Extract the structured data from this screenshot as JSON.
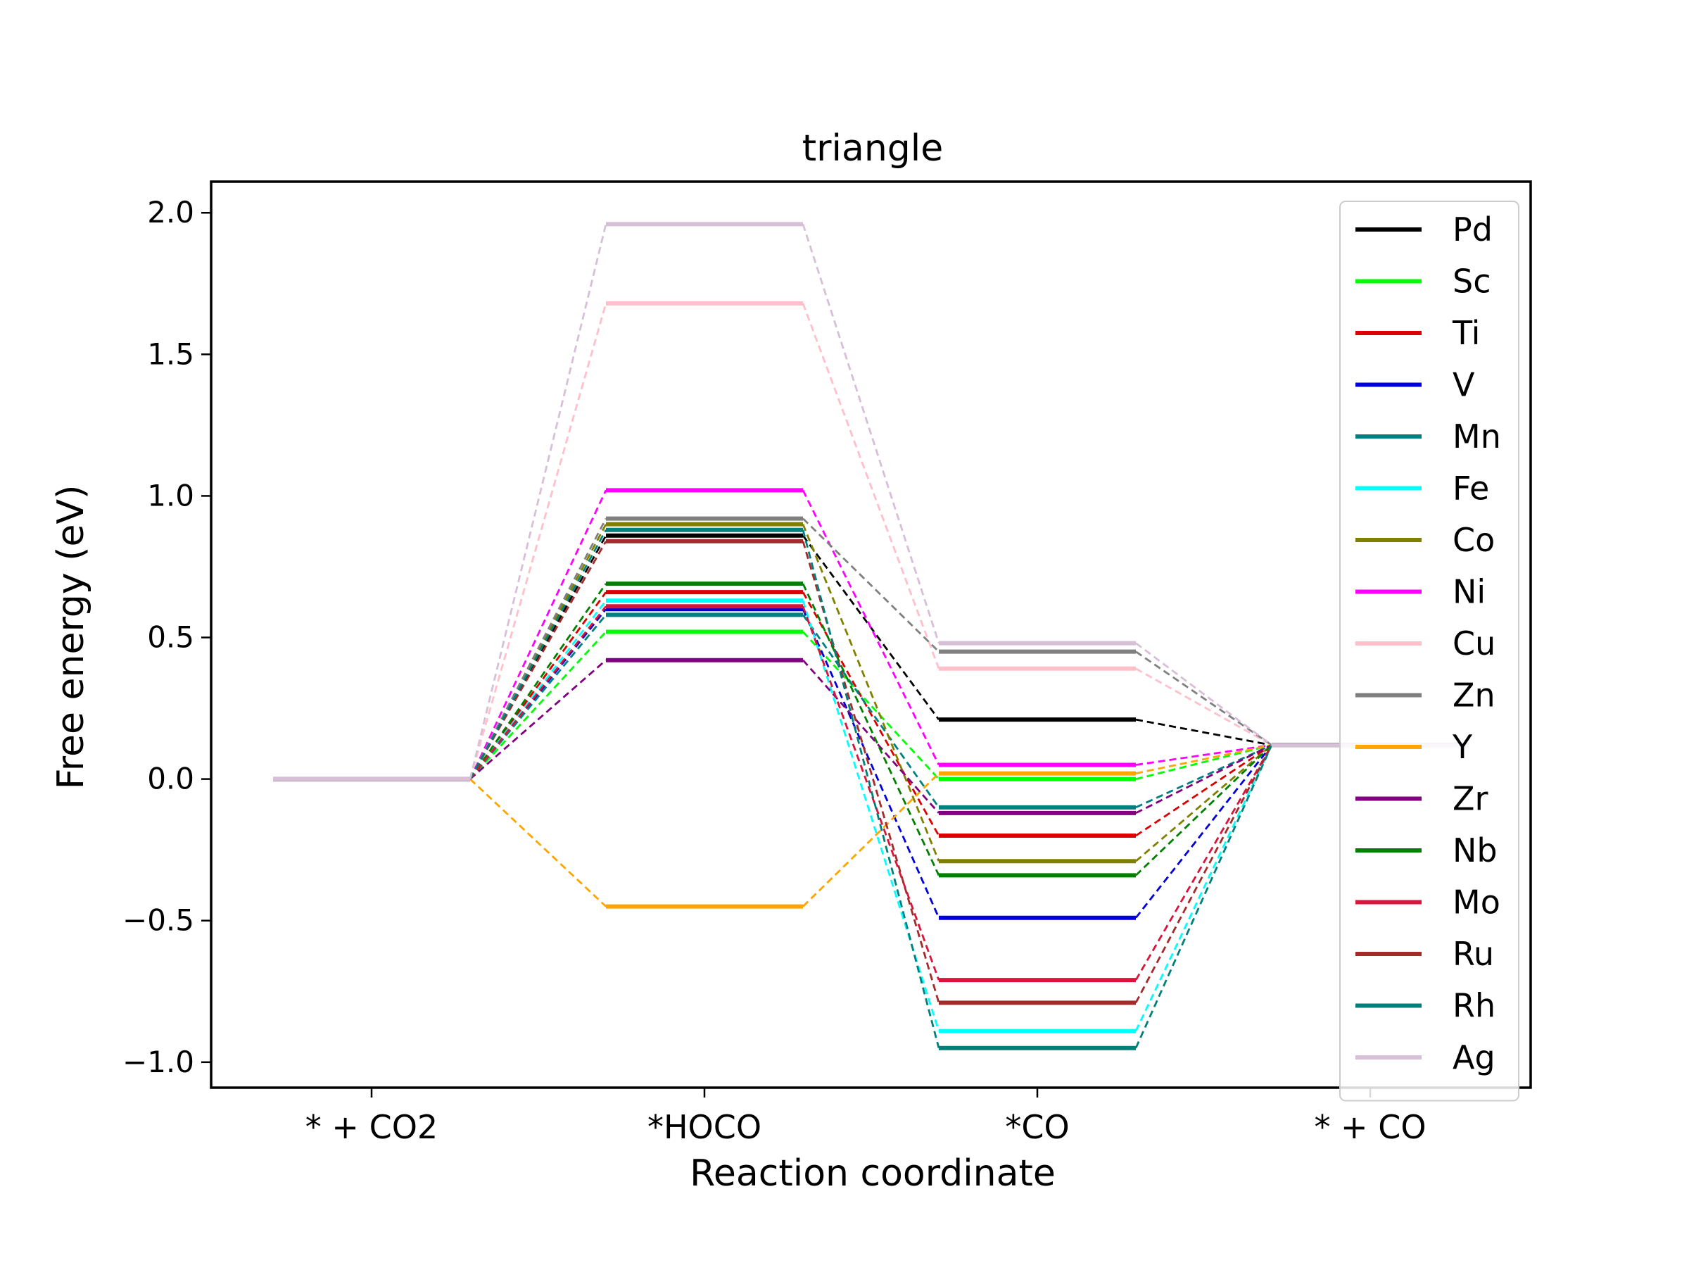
{
  "chart_data": {
    "type": "line",
    "title": "triangle",
    "xlabel": "Reaction coordinate",
    "ylabel": "Free energy (eV)",
    "categories": [
      "* + CO2",
      "*HOCO",
      "*CO",
      "* + CO"
    ],
    "ylim": [
      -1.09,
      2.11
    ],
    "yticks": [
      -1.0,
      -0.5,
      0.0,
      0.5,
      1.0,
      1.5,
      2.0
    ],
    "ytick_labels": [
      "−1.0",
      "−0.5",
      "0.0",
      "0.5",
      "1.0",
      "1.5",
      "2.0"
    ],
    "grid": false,
    "legend_position": "right",
    "series": [
      {
        "name": "Pd",
        "color": "#000000",
        "values": [
          0,
          0.86,
          0.21,
          0.12
        ]
      },
      {
        "name": "Sc",
        "color": "#00ff00",
        "values": [
          0,
          0.52,
          0.0,
          0.12
        ]
      },
      {
        "name": "Ti",
        "color": "#dd0000",
        "values": [
          0,
          0.66,
          -0.2,
          0.12
        ]
      },
      {
        "name": "V",
        "color": "#0000dd",
        "values": [
          0,
          0.6,
          -0.49,
          0.12
        ]
      },
      {
        "name": "Mn",
        "color": "#008080",
        "values": [
          0,
          0.58,
          -0.1,
          0.12
        ]
      },
      {
        "name": "Fe",
        "color": "#00ffff",
        "values": [
          0,
          0.63,
          -0.89,
          0.12
        ]
      },
      {
        "name": "Co",
        "color": "#808000",
        "values": [
          0,
          0.9,
          -0.29,
          0.12
        ]
      },
      {
        "name": "Ni",
        "color": "#ff00ff",
        "values": [
          0,
          1.02,
          0.05,
          0.12
        ]
      },
      {
        "name": "Cu",
        "color": "#ffc0cb",
        "values": [
          0,
          1.68,
          0.39,
          0.12
        ]
      },
      {
        "name": "Zn",
        "color": "#808080",
        "values": [
          0,
          0.92,
          0.45,
          0.12
        ]
      },
      {
        "name": "Y",
        "color": "#ffa500",
        "values": [
          0,
          -0.45,
          0.02,
          0.12
        ]
      },
      {
        "name": "Zr",
        "color": "#800080",
        "values": [
          0,
          0.42,
          -0.12,
          0.12
        ]
      },
      {
        "name": "Nb",
        "color": "#008000",
        "values": [
          0,
          0.69,
          -0.34,
          0.12
        ]
      },
      {
        "name": "Mo",
        "color": "#dc143c",
        "values": [
          0,
          0.61,
          -0.71,
          0.12
        ]
      },
      {
        "name": "Ru",
        "color": "#a52a2a",
        "values": [
          0,
          0.84,
          -0.79,
          0.12
        ]
      },
      {
        "name": "Rh",
        "color": "#00807a",
        "values": [
          0,
          0.88,
          -0.95,
          0.12
        ]
      },
      {
        "name": "Ag",
        "color": "#d8bfd8",
        "values": [
          0,
          1.96,
          0.48,
          0.12
        ]
      }
    ]
  }
}
